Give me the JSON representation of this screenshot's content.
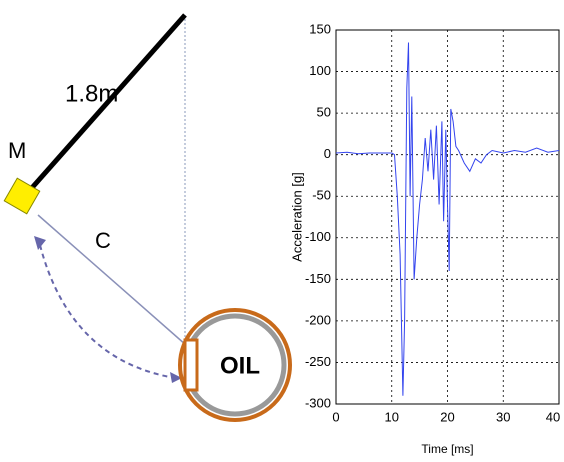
{
  "diagram": {
    "length_label": "1.8m",
    "mass_label": "M",
    "distance_label": "C",
    "tank_label": "OIL"
  },
  "chart_data": {
    "type": "line",
    "xlabel": "Time [ms]",
    "ylabel": "Acceleration [g]",
    "x": [
      0,
      2,
      4,
      6,
      8,
      10,
      10.5,
      11,
      11.5,
      12,
      12.3,
      12.7,
      13,
      13.3,
      13.6,
      14,
      14.5,
      15,
      15.5,
      16,
      16.5,
      17,
      17.5,
      18,
      18.5,
      19,
      19.3,
      19.7,
      20,
      20.3,
      20.6,
      21,
      21.5,
      22,
      23,
      24,
      25,
      26,
      27,
      28,
      30,
      32,
      34,
      36,
      38,
      40
    ],
    "values": [
      2,
      3,
      1,
      2,
      2,
      2,
      0,
      -50,
      -120,
      -290,
      -200,
      80,
      135,
      -50,
      70,
      -150,
      -100,
      -60,
      -30,
      20,
      -20,
      30,
      -30,
      35,
      -60,
      40,
      -80,
      30,
      -60,
      -140,
      55,
      40,
      10,
      5,
      -10,
      -20,
      -5,
      -10,
      0,
      5,
      2,
      5,
      3,
      8,
      3,
      5
    ],
    "color": "#3344ee",
    "xlim": [
      0,
      40
    ],
    "xticks": [
      0,
      10,
      20,
      30,
      40
    ],
    "ylim": [
      -300,
      150
    ],
    "yticks": [
      -300,
      -250,
      -200,
      -150,
      -100,
      -50,
      0,
      50,
      100,
      150
    ],
    "grid": true
  }
}
